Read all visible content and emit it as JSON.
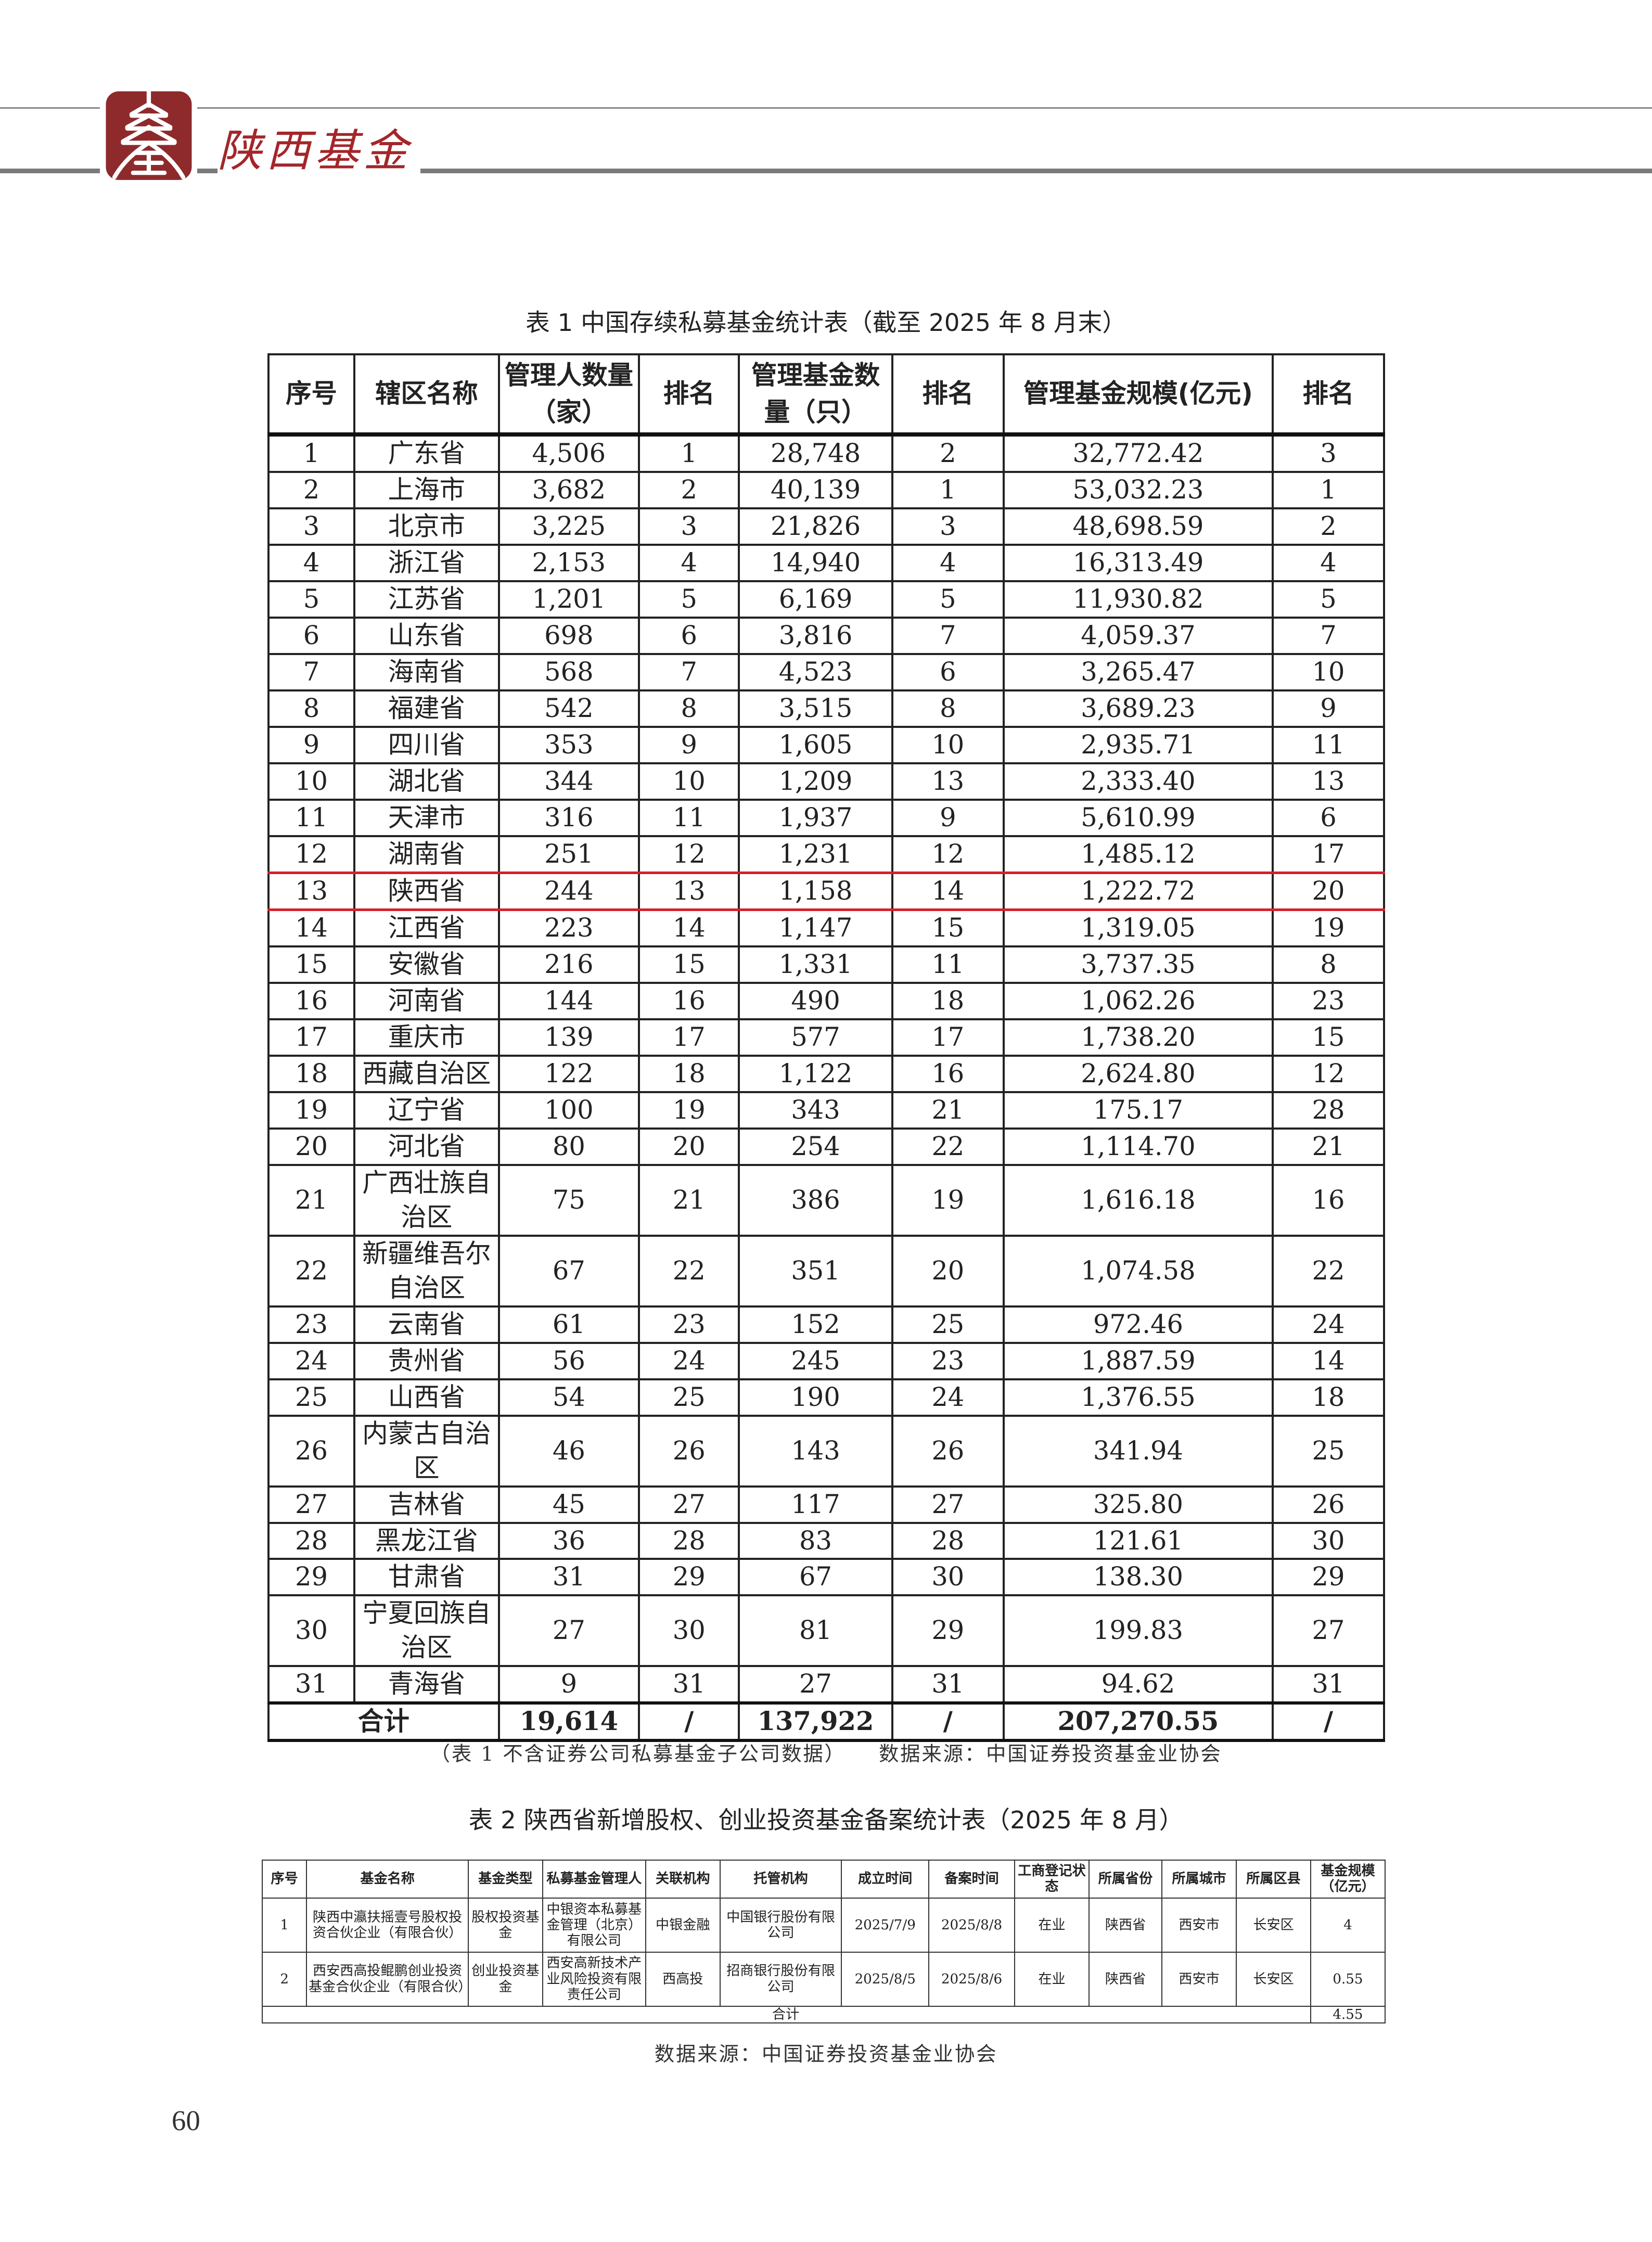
{
  "header": {
    "brand_name": "陕西基金",
    "brand_color": "#a3262a"
  },
  "table1": {
    "caption": "表 1 中国存续私募基金统计表（截至 2025 年 8 月末）",
    "columns": [
      "序号",
      "辖区名称",
      "管理人数量（家）",
      "排名",
      "管理基金数量（只）",
      "排名",
      "管理基金规模(亿元)",
      "排名"
    ],
    "highlight_color": "#d4202a",
    "highlighted_row": "13",
    "rows": [
      [
        "1",
        "广东省",
        "4,506",
        "1",
        "28,748",
        "2",
        "32,772.42",
        "3"
      ],
      [
        "2",
        "上海市",
        "3,682",
        "2",
        "40,139",
        "1",
        "53,032.23",
        "1"
      ],
      [
        "3",
        "北京市",
        "3,225",
        "3",
        "21,826",
        "3",
        "48,698.59",
        "2"
      ],
      [
        "4",
        "浙江省",
        "2,153",
        "4",
        "14,940",
        "4",
        "16,313.49",
        "4"
      ],
      [
        "5",
        "江苏省",
        "1,201",
        "5",
        "6,169",
        "5",
        "11,930.82",
        "5"
      ],
      [
        "6",
        "山东省",
        "698",
        "6",
        "3,816",
        "7",
        "4,059.37",
        "7"
      ],
      [
        "7",
        "海南省",
        "568",
        "7",
        "4,523",
        "6",
        "3,265.47",
        "10"
      ],
      [
        "8",
        "福建省",
        "542",
        "8",
        "3,515",
        "8",
        "3,689.23",
        "9"
      ],
      [
        "9",
        "四川省",
        "353",
        "9",
        "1,605",
        "10",
        "2,935.71",
        "11"
      ],
      [
        "10",
        "湖北省",
        "344",
        "10",
        "1,209",
        "13",
        "2,333.40",
        "13"
      ],
      [
        "11",
        "天津市",
        "316",
        "11",
        "1,937",
        "9",
        "5,610.99",
        "6"
      ],
      [
        "12",
        "湖南省",
        "251",
        "12",
        "1,231",
        "12",
        "1,485.12",
        "17"
      ],
      [
        "13",
        "陕西省",
        "244",
        "13",
        "1,158",
        "14",
        "1,222.72",
        "20"
      ],
      [
        "14",
        "江西省",
        "223",
        "14",
        "1,147",
        "15",
        "1,319.05",
        "19"
      ],
      [
        "15",
        "安徽省",
        "216",
        "15",
        "1,331",
        "11",
        "3,737.35",
        "8"
      ],
      [
        "16",
        "河南省",
        "144",
        "16",
        "490",
        "18",
        "1,062.26",
        "23"
      ],
      [
        "17",
        "重庆市",
        "139",
        "17",
        "577",
        "17",
        "1,738.20",
        "15"
      ],
      [
        "18",
        "西藏自治区",
        "122",
        "18",
        "1,122",
        "16",
        "2,624.80",
        "12"
      ],
      [
        "19",
        "辽宁省",
        "100",
        "19",
        "343",
        "21",
        "175.17",
        "28"
      ],
      [
        "20",
        "河北省",
        "80",
        "20",
        "254",
        "22",
        "1,114.70",
        "21"
      ],
      [
        "21",
        "广西壮族自治区",
        "75",
        "21",
        "386",
        "19",
        "1,616.18",
        "16"
      ],
      [
        "22",
        "新疆维吾尔自治区",
        "67",
        "22",
        "351",
        "20",
        "1,074.58",
        "22"
      ],
      [
        "23",
        "云南省",
        "61",
        "23",
        "152",
        "25",
        "972.46",
        "24"
      ],
      [
        "24",
        "贵州省",
        "56",
        "24",
        "245",
        "23",
        "1,887.59",
        "14"
      ],
      [
        "25",
        "山西省",
        "54",
        "25",
        "190",
        "24",
        "1,376.55",
        "18"
      ],
      [
        "26",
        "内蒙古自治区",
        "46",
        "26",
        "143",
        "26",
        "341.94",
        "25"
      ],
      [
        "27",
        "吉林省",
        "45",
        "27",
        "117",
        "27",
        "325.80",
        "26"
      ],
      [
        "28",
        "黑龙江省",
        "36",
        "28",
        "83",
        "28",
        "121.61",
        "30"
      ],
      [
        "29",
        "甘肃省",
        "31",
        "29",
        "67",
        "30",
        "138.30",
        "29"
      ],
      [
        "30",
        "宁夏回族自治区",
        "27",
        "30",
        "81",
        "29",
        "199.83",
        "27"
      ],
      [
        "31",
        "青海省",
        "9",
        "31",
        "27",
        "31",
        "94.62",
        "31"
      ]
    ],
    "total": [
      "合计",
      "19,614",
      "/",
      "137,922",
      "/",
      "207,270.55",
      "/"
    ],
    "note": "（表 1 不含证券公司私募基金子公司数据）　　数据来源：中国证券投资基金业协会"
  },
  "table2": {
    "caption": "表 2 陕西省新增股权、创业投资基金备案统计表（2025 年 8 月）",
    "columns": [
      "序号",
      "基金名称",
      "基金类型",
      "私募基金管理人",
      "关联机构",
      "托管机构",
      "成立时间",
      "备案时间",
      "工商登记状态",
      "所属省份",
      "所属城市",
      "所属区县",
      "基金规模（亿元）"
    ],
    "rows": [
      [
        "1",
        "陕西中瀛扶摇壹号股权投资合伙企业（有限合伙）",
        "股权投资基金",
        "中银资本私募基金管理（北京）有限公司",
        "中银金融",
        "中国银行股份有限公司",
        "2025/7/9",
        "2025/8/8",
        "在业",
        "陕西省",
        "西安市",
        "长安区",
        "4"
      ],
      [
        "2",
        "西安西高投鲲鹏创业投资基金合伙企业（有限合伙）",
        "创业投资基金",
        "西安高新技术产业风险投资有限责任公司",
        "西高投",
        "招商银行股份有限公司",
        "2025/8/5",
        "2025/8/6",
        "在业",
        "陕西省",
        "西安市",
        "长安区",
        "0.55"
      ]
    ],
    "total_label": "合计",
    "total_value": "4.55",
    "note": "数据来源：中国证券投资基金业协会"
  },
  "page_number": "60"
}
